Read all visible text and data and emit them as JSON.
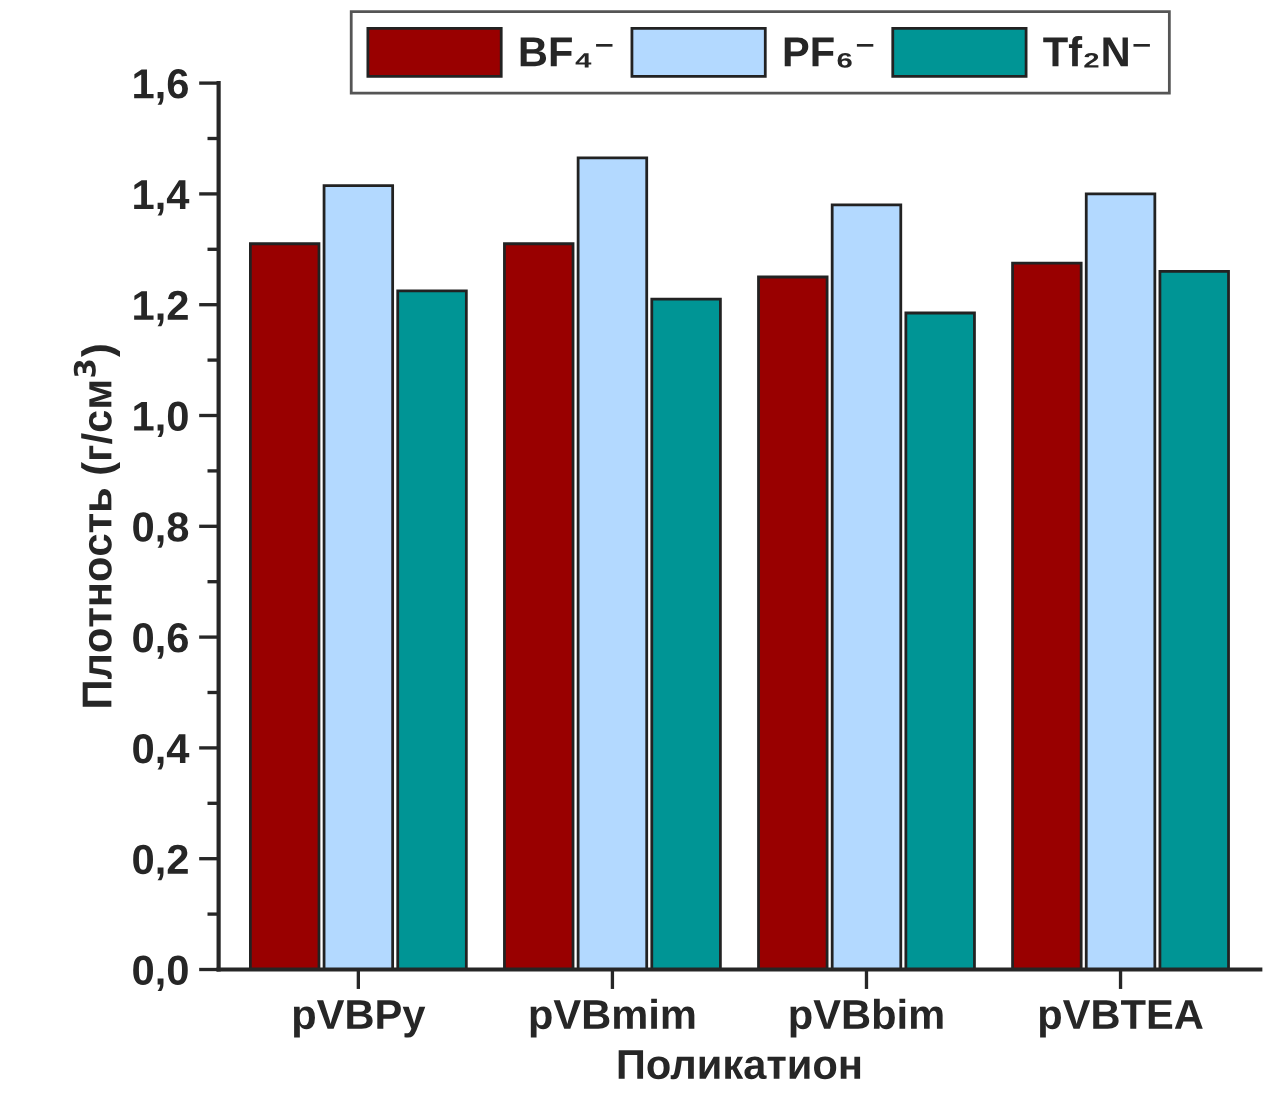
{
  "chart_data": {
    "type": "bar",
    "xlabel": "Поликатион",
    "ylabel": "Плотность (г/см$^{3}$)",
    "categories": [
      "pVBPy",
      "pVBmim",
      "pVBbim",
      "pVBTEA"
    ],
    "series": [
      {
        "name": "BF₄⁻",
        "color": "#990000",
        "values": [
          1.31,
          1.31,
          1.25,
          1.275
        ]
      },
      {
        "name": "PF₆⁻",
        "color": "#b3d9ff",
        "values": [
          1.415,
          1.465,
          1.38,
          1.4
        ]
      },
      {
        "name": "Tf₂N⁻",
        "color": "#009595",
        "values": [
          1.225,
          1.21,
          1.185,
          1.26
        ]
      }
    ],
    "ylim": [
      0,
      1.6
    ],
    "yticks": [
      {
        "value": 0,
        "label": "0,0"
      },
      {
        "value": 0.2,
        "label": "0,2"
      },
      {
        "value": 0.4,
        "label": "0,4"
      },
      {
        "value": 0.6,
        "label": "0,6"
      },
      {
        "value": 0.8,
        "label": "0,8"
      },
      {
        "value": 1.0,
        "label": "1,0"
      },
      {
        "value": 1.2,
        "label": "1,2"
      },
      {
        "value": 1.4,
        "label": "1,4"
      },
      {
        "value": 1.6,
        "label": "1,6"
      }
    ],
    "legend": "top",
    "grid": false
  }
}
